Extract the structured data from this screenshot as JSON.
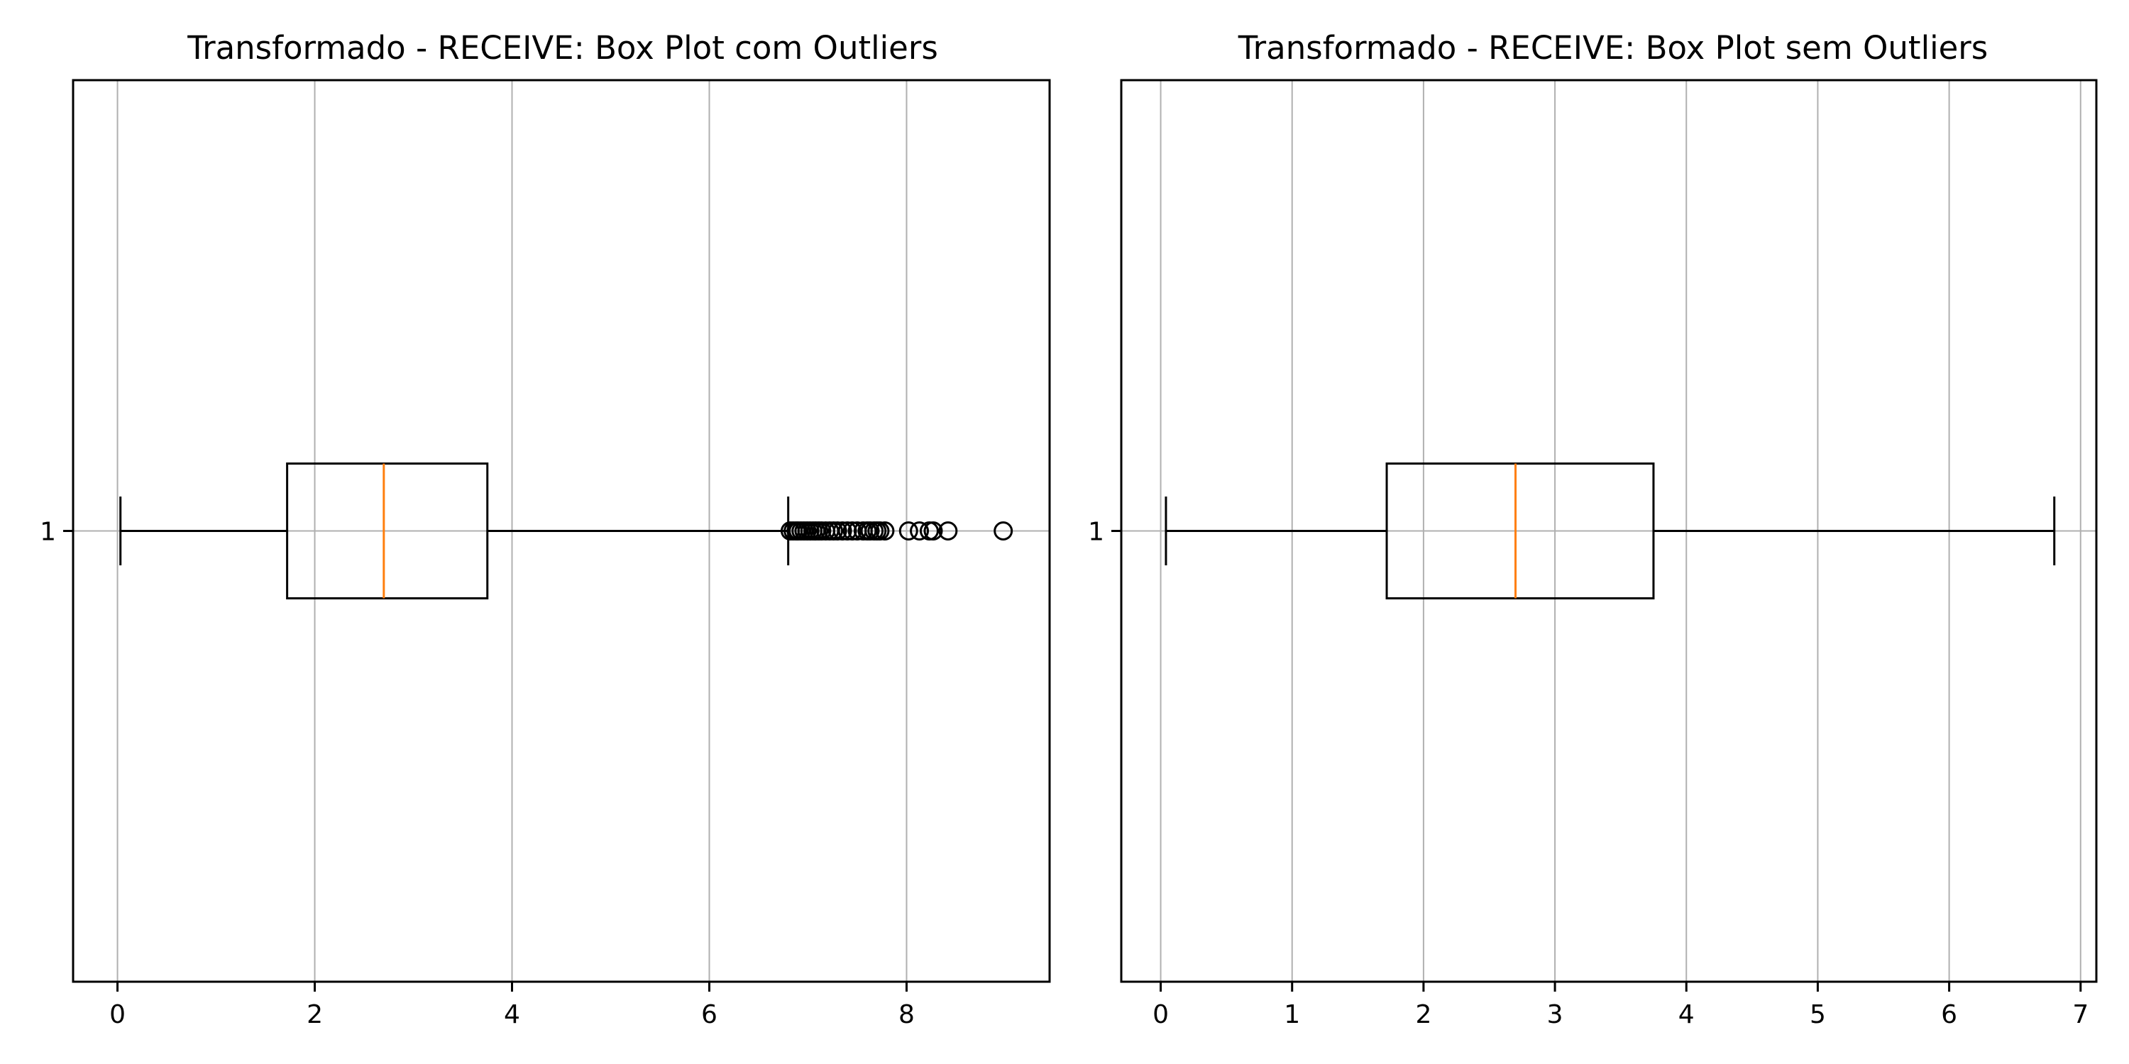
{
  "chart_data": [
    {
      "type": "boxplot",
      "title": "Transformado - RECEIVE: Box Plot com Outliers",
      "orientation": "horizontal",
      "xlim": [
        -0.45,
        9.45
      ],
      "xticks": [
        0,
        2,
        4,
        6,
        8
      ],
      "ytick_labels": [
        "1"
      ],
      "grid": true,
      "box": {
        "whisker_low": 0.03,
        "q1": 1.72,
        "median": 2.7,
        "q3": 3.75,
        "whisker_high": 6.8
      },
      "outliers": [
        6.82,
        6.85,
        6.88,
        6.9,
        6.93,
        6.96,
        6.99,
        7.02,
        7.05,
        7.08,
        7.11,
        7.14,
        7.18,
        7.22,
        7.26,
        7.3,
        7.35,
        7.4,
        7.45,
        7.5,
        7.56,
        7.6,
        7.63,
        7.67,
        7.7,
        7.73,
        7.78,
        8.02,
        8.13,
        8.23,
        8.27,
        8.42,
        8.98
      ]
    },
    {
      "type": "boxplot",
      "title": "Transformado - RECEIVE: Box Plot sem Outliers",
      "orientation": "horizontal",
      "xlim": [
        -0.3,
        7.12
      ],
      "xticks": [
        0,
        1,
        2,
        3,
        4,
        5,
        6,
        7
      ],
      "ytick_labels": [
        "1"
      ],
      "grid": true,
      "box": {
        "whisker_low": 0.04,
        "q1": 1.72,
        "median": 2.7,
        "q3": 3.75,
        "whisker_high": 6.8
      },
      "outliers": []
    }
  ],
  "colors": {
    "box": "#000000",
    "median": "#ff7f0e",
    "grid": "#b0b0b0",
    "axes": "#000000"
  }
}
